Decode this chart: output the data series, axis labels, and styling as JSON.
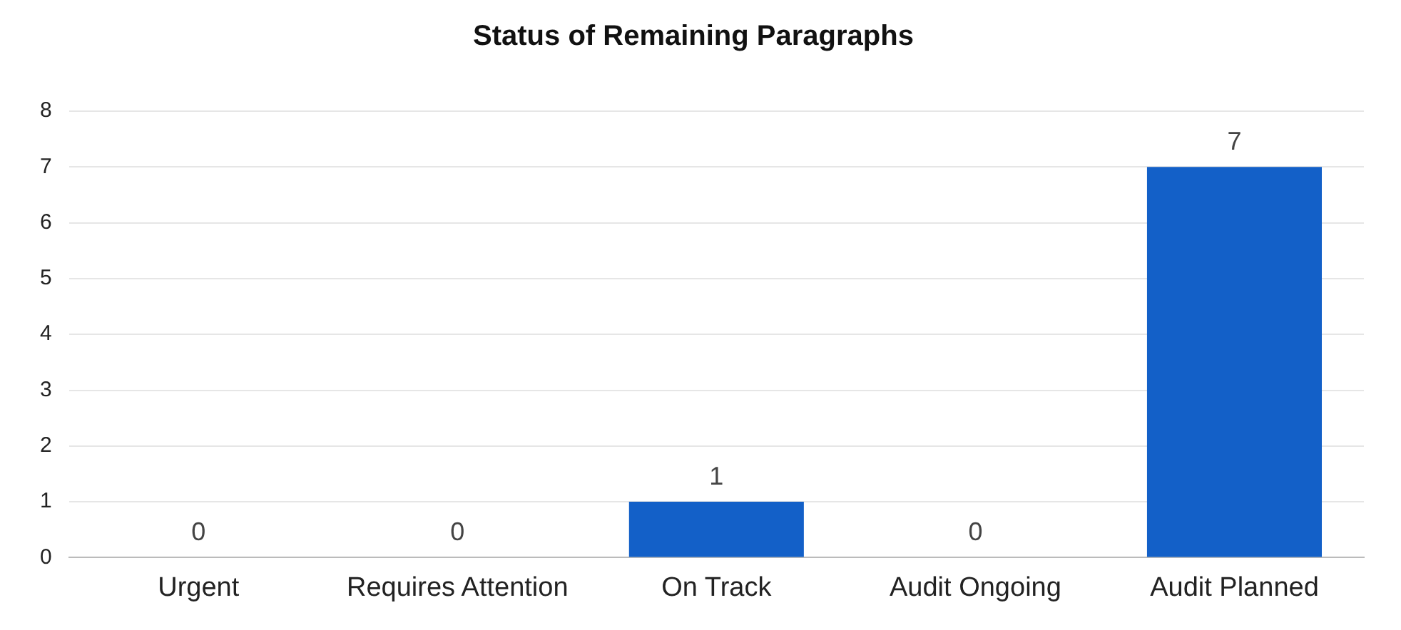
{
  "chart_data": {
    "type": "bar",
    "title": "Status of Remaining Paragraphs",
    "categories": [
      "Urgent",
      "Requires Attention",
      "On Track",
      "Audit Ongoing",
      "Audit Planned"
    ],
    "values": [
      0,
      0,
      1,
      0,
      7
    ],
    "color": "#1360c8",
    "ylim": [
      0,
      8
    ],
    "yticks": [
      0,
      1,
      2,
      3,
      4,
      5,
      6,
      7,
      8
    ],
    "grid": "y",
    "legend": false,
    "data_labels": true
  }
}
